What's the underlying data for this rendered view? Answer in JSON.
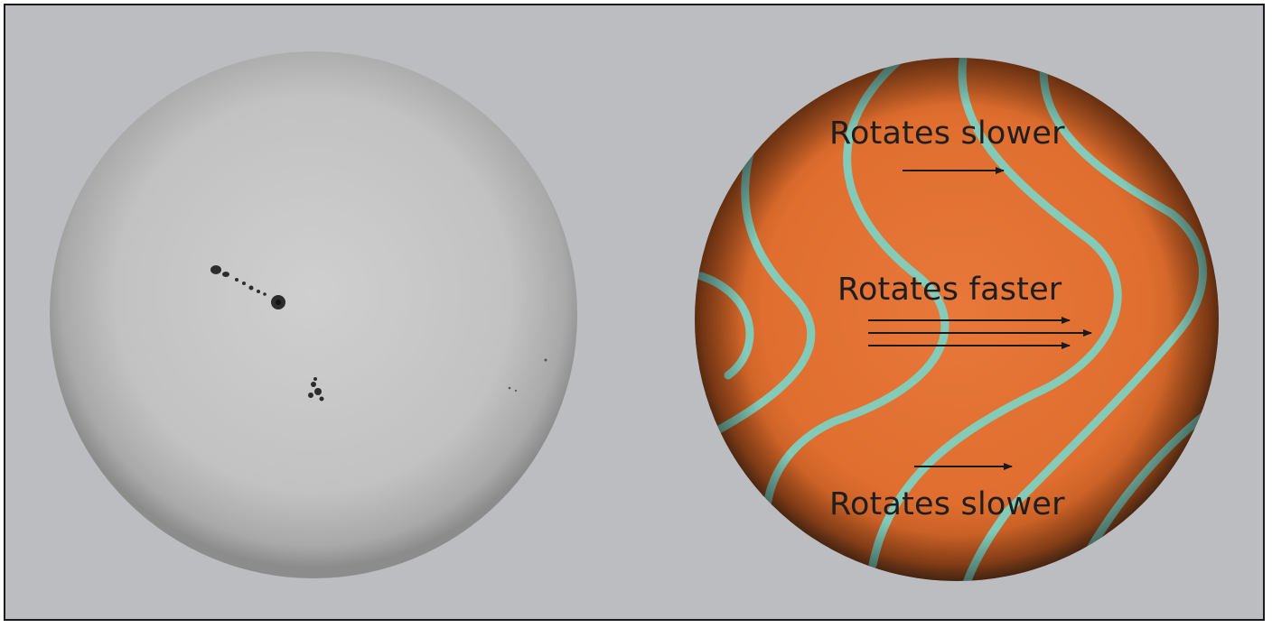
{
  "figure": {
    "left_panel": {
      "subject": "sun-photograph",
      "colors": {
        "disk": "#c4c4c4",
        "limb": "#8f8f8f",
        "sunspot": "#2c2c2c"
      }
    },
    "right_panel": {
      "subject": "differential-rotation-diagram",
      "colors": {
        "surface": "#e0702e",
        "field_lines": "#7fd0c0",
        "arrows": "#1a1a1a"
      },
      "labels": {
        "top": "Rotates slower",
        "middle": "Rotates faster",
        "bottom": "Rotates slower"
      }
    }
  }
}
